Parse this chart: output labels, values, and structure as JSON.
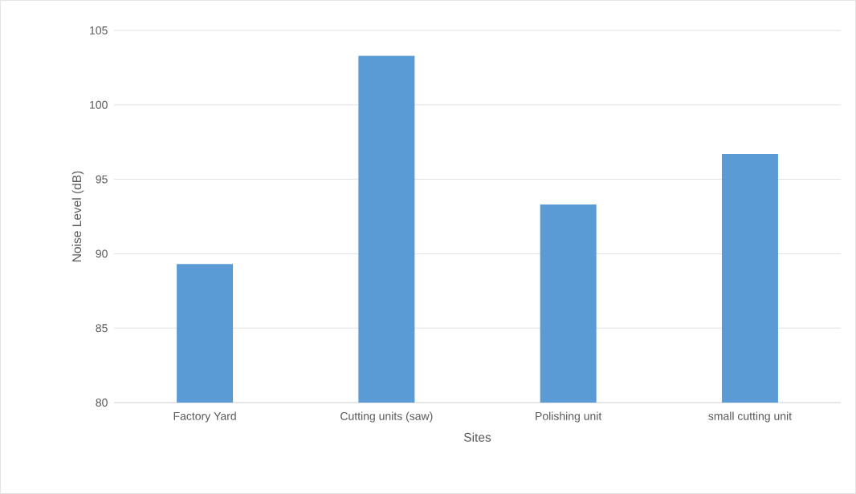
{
  "chart_data": {
    "type": "bar",
    "xlabel": "Sites",
    "ylabel": "Noise Level (dB)",
    "categories": [
      "Factory Yard",
      "Cutting units (saw)",
      "Polishing unit",
      "small cutting unit"
    ],
    "values": [
      89.3,
      103.3,
      93.3,
      96.7
    ],
    "color": "#5b9bd5",
    "ylim": [
      80,
      105
    ],
    "yticks": [
      80,
      85,
      90,
      95,
      100,
      105
    ],
    "grid": "y"
  }
}
